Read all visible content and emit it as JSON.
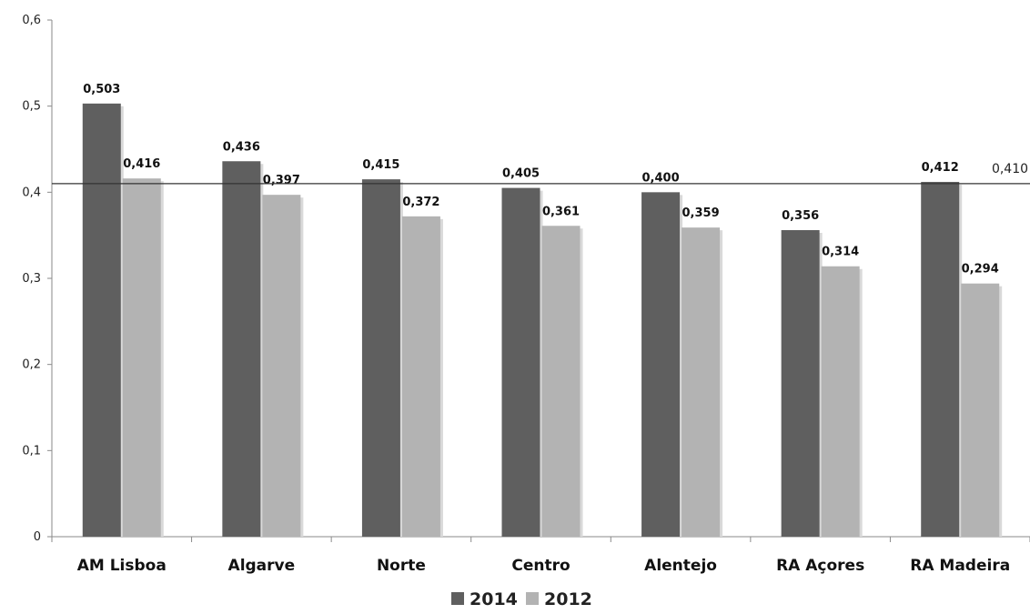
{
  "chart_data": {
    "type": "bar",
    "categories": [
      "AM Lisboa",
      "Algarve",
      "Norte",
      "Centro",
      "Alentejo",
      "RA Açores",
      "RA Madeira"
    ],
    "series": [
      {
        "name": "2014",
        "values": [
          0.503,
          0.436,
          0.415,
          0.405,
          0.4,
          0.356,
          0.412
        ],
        "labels": [
          "0,503",
          "0,436",
          "0,415",
          "0,405",
          "0,400",
          "0,356",
          "0,412"
        ],
        "color": "#5f5f5f"
      },
      {
        "name": "2012",
        "values": [
          0.416,
          0.397,
          0.372,
          0.361,
          0.359,
          0.314,
          0.294
        ],
        "labels": [
          "0,416",
          "0,397",
          "0,372",
          "0,361",
          "0,359",
          "0,314",
          "0,294"
        ],
        "color": "#b3b3b3"
      }
    ],
    "reference_line": {
      "value": 0.41,
      "label": "0,410"
    },
    "ylim": [
      0,
      0.6
    ],
    "yticks": [
      {
        "value": 0,
        "label": "0"
      },
      {
        "value": 0.1,
        "label": "0,1"
      },
      {
        "value": 0.2,
        "label": "0,2"
      },
      {
        "value": 0.3,
        "label": "0,3"
      },
      {
        "value": 0.4,
        "label": "0,4"
      },
      {
        "value": 0.5,
        "label": "0,5"
      },
      {
        "value": 0.6,
        "label": "0,6"
      }
    ],
    "grid": false,
    "legend_position": "bottom-center",
    "xlabel": "",
    "ylabel": "",
    "title": ""
  }
}
